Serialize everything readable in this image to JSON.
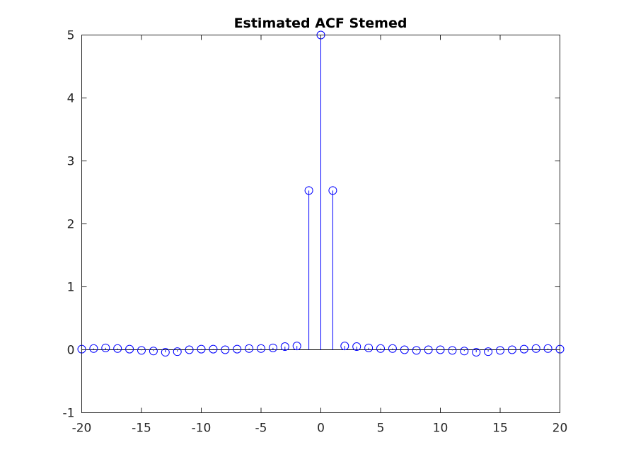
{
  "chart_data": {
    "type": "scatter",
    "style": "stem",
    "title": "Estimated ACF Stemed",
    "xlabel": "",
    "ylabel": "",
    "xlim": [
      -20,
      20
    ],
    "ylim": [
      -1,
      5
    ],
    "xticks": [
      "-20",
      "-15",
      "-10",
      "-5",
      "0",
      "5",
      "10",
      "15",
      "20"
    ],
    "yticks": [
      "-1",
      "0",
      "1",
      "2",
      "3",
      "4",
      "5"
    ],
    "grid": false,
    "legend": "none",
    "colors": {
      "stem": "#0000ff",
      "axes": "#262626",
      "baseline": "#000000"
    },
    "x": [
      -20,
      -19,
      -18,
      -17,
      -16,
      -15,
      -14,
      -13,
      -12,
      -11,
      -10,
      -9,
      -8,
      -7,
      -6,
      -5,
      -4,
      -3,
      -2,
      -1,
      0,
      1,
      2,
      3,
      4,
      5,
      6,
      7,
      8,
      9,
      10,
      11,
      12,
      13,
      14,
      15,
      16,
      17,
      18,
      19,
      20
    ],
    "values": [
      0.01,
      0.02,
      0.03,
      0.02,
      0.01,
      -0.01,
      -0.02,
      -0.04,
      -0.03,
      0.0,
      0.01,
      0.01,
      0.0,
      0.01,
      0.02,
      0.02,
      0.03,
      0.05,
      0.06,
      2.53,
      5.0,
      2.53,
      0.06,
      0.05,
      0.03,
      0.02,
      0.02,
      0.0,
      -0.01,
      0.0,
      0.0,
      -0.01,
      -0.02,
      -0.04,
      -0.03,
      -0.01,
      0.0,
      0.01,
      0.02,
      0.02,
      0.01
    ]
  }
}
